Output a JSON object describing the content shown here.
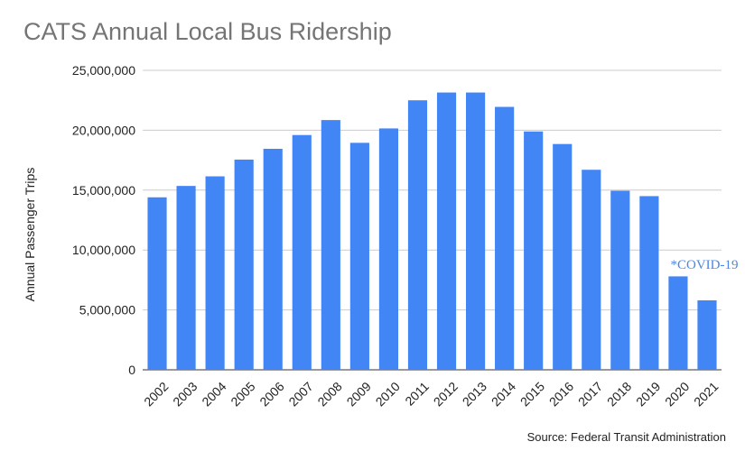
{
  "chart_data": {
    "type": "bar",
    "title": "CATS Annual Local Bus Ridership",
    "xlabel": "",
    "ylabel": "Annual Passenger Trips",
    "ylim": [
      0,
      25000000
    ],
    "yticks": [
      "0",
      "5,000,000",
      "10,000,000",
      "15,000,000",
      "20,000,000",
      "25,000,000"
    ],
    "categories": [
      "2002",
      "2003",
      "2004",
      "2005",
      "2006",
      "2007",
      "2008",
      "2009",
      "2010",
      "2011",
      "2012",
      "2013",
      "2014",
      "2015",
      "2016",
      "2017",
      "2018",
      "2019",
      "2020",
      "2021"
    ],
    "values": [
      14400000,
      15350000,
      16150000,
      17550000,
      18450000,
      19600000,
      20850000,
      18950000,
      20150000,
      22500000,
      23150000,
      23150000,
      21950000,
      19900000,
      18850000,
      16700000,
      14950000,
      14500000,
      7800000,
      5800000
    ],
    "bar_color": "#4285f4",
    "grid": true,
    "legend": "none",
    "annotation": {
      "text": "*COVID-19",
      "category": "2020",
      "color": "#4a86e8"
    },
    "source": "Source: Federal Transit Administration"
  }
}
